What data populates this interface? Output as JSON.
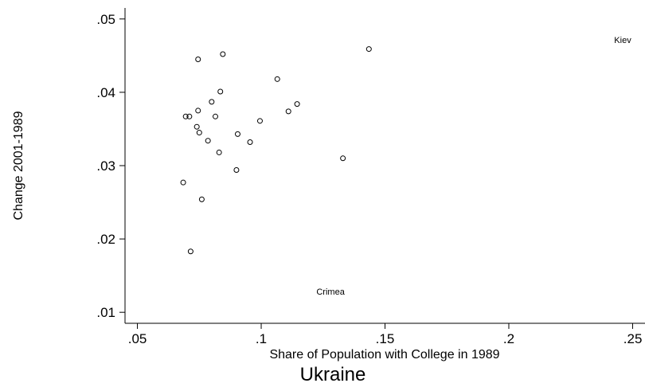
{
  "chart_data": {
    "type": "scatter",
    "title": "Ukraine",
    "xlabel": "Share of Population with College in 1989",
    "ylabel": "Change 2001-1989",
    "xlim": [
      0.045,
      0.255
    ],
    "ylim": [
      0.0085,
      0.0515
    ],
    "xticks": [
      0.05,
      0.1,
      0.15,
      0.2,
      0.25
    ],
    "xtick_labels": [
      ".05",
      ".1",
      ".15",
      ".2",
      ".25"
    ],
    "yticks": [
      0.01,
      0.02,
      0.03,
      0.04,
      0.05
    ],
    "ytick_labels": [
      ".01",
      ".02",
      ".03",
      ".04",
      ".05"
    ],
    "grid": false,
    "legend": "none",
    "points": [
      {
        "x": 0.0745,
        "y": 0.0445
      },
      {
        "x": 0.0845,
        "y": 0.0452
      },
      {
        "x": 0.1435,
        "y": 0.0459
      },
      {
        "x": 0.1065,
        "y": 0.0418
      },
      {
        "x": 0.0835,
        "y": 0.0401
      },
      {
        "x": 0.08,
        "y": 0.0387
      },
      {
        "x": 0.1145,
        "y": 0.0384
      },
      {
        "x": 0.0745,
        "y": 0.0375
      },
      {
        "x": 0.111,
        "y": 0.0374
      },
      {
        "x": 0.0695,
        "y": 0.0367
      },
      {
        "x": 0.071,
        "y": 0.0367
      },
      {
        "x": 0.0815,
        "y": 0.0367
      },
      {
        "x": 0.0995,
        "y": 0.0361
      },
      {
        "x": 0.074,
        "y": 0.0353
      },
      {
        "x": 0.075,
        "y": 0.0345
      },
      {
        "x": 0.0905,
        "y": 0.0343
      },
      {
        "x": 0.0785,
        "y": 0.0334
      },
      {
        "x": 0.0955,
        "y": 0.0332
      },
      {
        "x": 0.083,
        "y": 0.0318
      },
      {
        "x": 0.133,
        "y": 0.031
      },
      {
        "x": 0.09,
        "y": 0.0294
      },
      {
        "x": 0.0685,
        "y": 0.0277
      },
      {
        "x": 0.076,
        "y": 0.0254
      },
      {
        "x": 0.0715,
        "y": 0.0183
      }
    ],
    "labeled_points": [
      {
        "label": "Kiev",
        "x": 0.246,
        "y": 0.0467
      },
      {
        "label": "Crimea",
        "x": 0.128,
        "y": 0.0124
      }
    ]
  }
}
